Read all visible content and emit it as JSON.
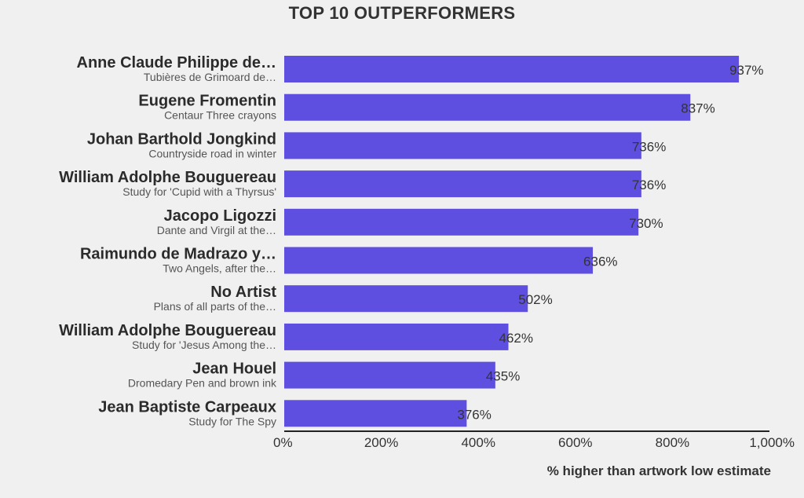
{
  "chart_data": {
    "type": "bar",
    "orientation": "horizontal",
    "title": "TOP 10 OUTPERFORMERS",
    "xlabel": "% higher than artwork low estimate",
    "xlim": [
      0,
      1000
    ],
    "xticks": [
      "0%",
      "200%",
      "400%",
      "600%",
      "800%",
      "1,000%"
    ],
    "tick_values": [
      0,
      200,
      400,
      600,
      800,
      1000
    ],
    "grid": false,
    "bar_color": "#5e4fe0",
    "categories": [
      {
        "artist": "Anne Claude Philippe de…",
        "artwork": "Tubières de Grimoard de…",
        "value": 937,
        "label": "937%"
      },
      {
        "artist": "Eugene Fromentin",
        "artwork": "Centaur Three crayons",
        "value": 837,
        "label": "837%"
      },
      {
        "artist": "Johan Barthold Jongkind",
        "artwork": "Countryside road in winter",
        "value": 736,
        "label": "736%"
      },
      {
        "artist": "William Adolphe Bouguereau",
        "artwork": "Study for 'Cupid with a Thyrsus'",
        "value": 736,
        "label": "736%"
      },
      {
        "artist": "Jacopo Ligozzi",
        "artwork": "Dante and Virgil at the…",
        "value": 730,
        "label": "730%"
      },
      {
        "artist": "Raimundo de Madrazo y…",
        "artwork": "Two Angels, after the…",
        "value": 636,
        "label": "636%"
      },
      {
        "artist": "No Artist",
        "artwork": "Plans of all parts of the…",
        "value": 502,
        "label": "502%"
      },
      {
        "artist": "William Adolphe Bouguereau",
        "artwork": "Study for 'Jesus Among the…",
        "value": 462,
        "label": "462%"
      },
      {
        "artist": "Jean Houel",
        "artwork": "Dromedary Pen and brown ink",
        "value": 435,
        "label": "435%"
      },
      {
        "artist": "Jean Baptiste Carpeaux",
        "artwork": "Study for The Spy",
        "value": 376,
        "label": "376%"
      }
    ]
  }
}
